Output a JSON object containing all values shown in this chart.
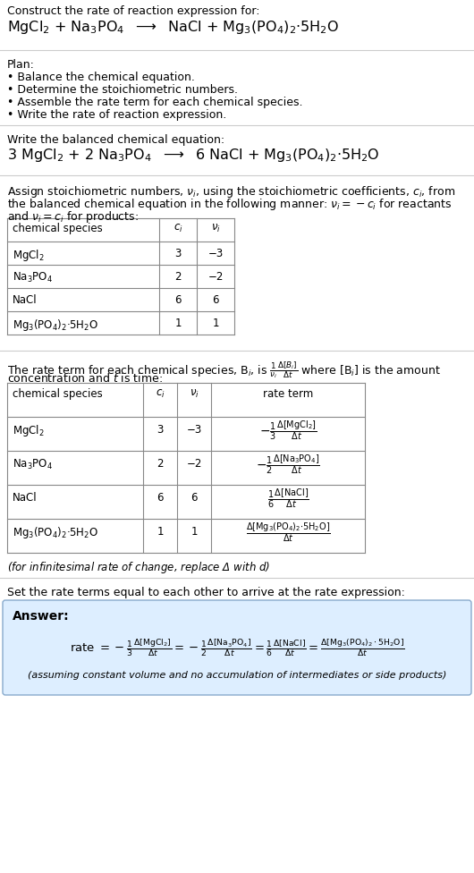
{
  "bg_color": "#ffffff",
  "text_color": "#000000",
  "answer_bg": "#ddeeff",
  "answer_border": "#88aacc",
  "title_text": "Construct the rate of reaction expression for:",
  "plan_header": "Plan:",
  "plan_items": [
    "• Balance the chemical equation.",
    "• Determine the stoichiometric numbers.",
    "• Assemble the rate term for each chemical species.",
    "• Write the rate of reaction expression."
  ],
  "balanced_header": "Write the balanced chemical equation:",
  "stoich_intro": "Assign stoichiometric numbers, $\\nu_i$, using the stoichiometric coefficients, $c_i$, from\nthe balanced chemical equation in the following manner: $\\nu_i = -c_i$ for reactants\nand $\\nu_i = c_i$ for products:",
  "table1_headers": [
    "chemical species",
    "$c_i$",
    "$\\nu_i$"
  ],
  "table1_rows": [
    [
      "MgCl$_2$",
      "3",
      "−3"
    ],
    [
      "Na$_3$PO$_4$",
      "2",
      "−2"
    ],
    [
      "NaCl",
      "6",
      "6"
    ],
    [
      "Mg$_3$(PO$_4$)$_2$·5H$_2$O",
      "1",
      "1"
    ]
  ],
  "rate_intro1": "The rate term for each chemical species, B$_i$, is $\\frac{1}{\\nu_i}\\frac{\\Delta[B_i]}{\\Delta t}$ where [B$_i$] is the amount",
  "rate_intro2": "concentration and $t$ is time:",
  "table2_headers": [
    "chemical species",
    "$c_i$",
    "$\\nu_i$",
    "rate term"
  ],
  "table2_species": [
    "MgCl$_2$",
    "Na$_3$PO$_4$",
    "NaCl",
    "Mg$_3$(PO$_4$)$_2$·5H$_2$O"
  ],
  "table2_ci": [
    "3",
    "2",
    "6",
    "1"
  ],
  "table2_nui": [
    "−3",
    "−2",
    "6",
    "1"
  ],
  "infinitesimal": "(for infinitesimal rate of change, replace Δ with $d$)",
  "set_rate_header": "Set the rate terms equal to each other to arrive at the rate expression:",
  "answer_label": "Answer:",
  "answer_note": "(assuming constant volume and no accumulation of intermediates or side products)"
}
